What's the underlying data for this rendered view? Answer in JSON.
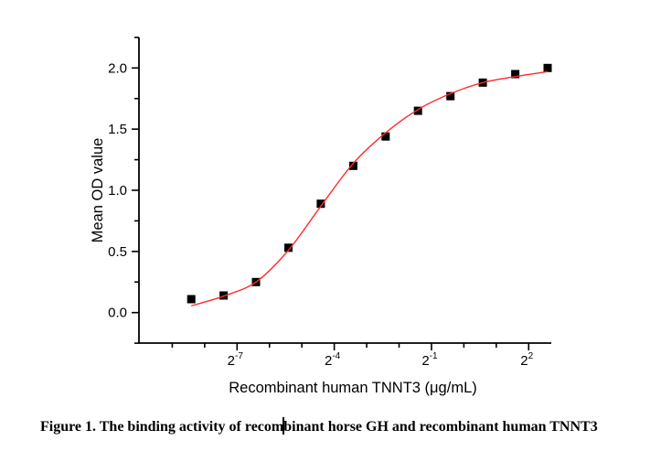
{
  "chart_data": {
    "type": "scatter",
    "title": "",
    "xlabel": "Recombinant human TNNT3 (μg/mL)",
    "ylabel": "Mean OD value",
    "x_scale": "log2",
    "grid": false,
    "legend": "none",
    "axis_color": "#000000",
    "x_axis": {
      "tick_base": "2",
      "major_tick_exponents": [
        -7,
        -4,
        -1,
        2
      ],
      "minor_tick_exponents": [
        -9,
        -8,
        -6,
        -5,
        -3,
        -2,
        0,
        1
      ],
      "xlim_log2": [
        -10,
        2.7
      ]
    },
    "y_axis": {
      "major_ticks": [
        0.0,
        0.5,
        1.0,
        1.5,
        2.0
      ],
      "minor_ticks": [
        -0.25,
        0.25,
        0.75,
        1.25,
        1.75,
        2.25
      ],
      "ylim": [
        -0.25,
        2.25
      ],
      "tick_label_decimals": 1
    },
    "series": [
      {
        "name": "mean-od-data-points",
        "kind": "scatter",
        "marker": "square",
        "marker_size_px": 9,
        "color": "#000000",
        "x_ug_per_ml": [
          0.00293,
          0.00586,
          0.01172,
          0.02344,
          0.04688,
          0.09375,
          0.1875,
          0.375,
          0.75,
          1.5,
          3,
          6
        ],
        "y_od": [
          0.11,
          0.14,
          0.25,
          0.53,
          0.89,
          1.2,
          1.44,
          1.65,
          1.77,
          1.88,
          1.95,
          2.0
        ]
      },
      {
        "name": "sigmoid-fit-curve",
        "kind": "line",
        "color": "#ff2b2b",
        "stroke_width": 1.4,
        "x_ug_per_ml": [
          0.00293,
          0.00586,
          0.01172,
          0.02344,
          0.04688,
          0.09375,
          0.1875,
          0.375,
          0.75,
          1.5,
          3,
          6
        ],
        "y_od": [
          0.055,
          0.135,
          0.25,
          0.51,
          0.87,
          1.22,
          1.47,
          1.66,
          1.79,
          1.88,
          1.93,
          1.97
        ]
      }
    ]
  },
  "caption": {
    "text": "Figure 1. The binding activity of recombinant horse GH and recombinant human TNNT3",
    "cursor_offset_chars": 39
  }
}
